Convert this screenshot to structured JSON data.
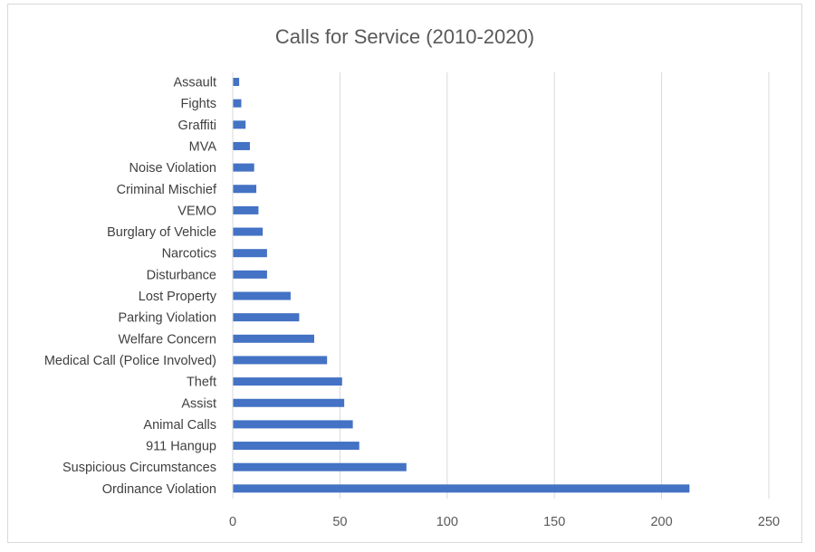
{
  "chart_data": {
    "type": "bar",
    "orientation": "horizontal",
    "title": "Calls for Service (2010-2020)",
    "xlabel": "",
    "ylabel": "",
    "categories": [
      "Assault",
      "Fights",
      "Graffiti",
      "MVA",
      "Noise Violation",
      "Criminal Mischief",
      "VEMO",
      "Burglary of Vehicle",
      "Narcotics",
      "Disturbance",
      "Lost Property",
      "Parking Violation",
      "Welfare Concern",
      "Medical Call (Police Involved)",
      "Theft",
      "Assist",
      "Animal Calls",
      "911 Hangup",
      "Suspicious Circumstances",
      "Ordinance Violation"
    ],
    "values": [
      3,
      4,
      6,
      8,
      10,
      11,
      12,
      14,
      16,
      16,
      27,
      31,
      38,
      44,
      51,
      52,
      56,
      59,
      81,
      213
    ],
    "xlim": [
      0,
      250
    ],
    "xticks": [
      0,
      50,
      100,
      150,
      200,
      250
    ],
    "grid": true,
    "legend": "none",
    "bar_color": "#4472c4",
    "grid_color": "#d9d9d9"
  }
}
